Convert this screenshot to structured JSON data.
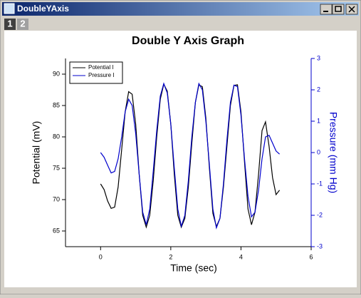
{
  "window": {
    "title": "DoubleYAxis",
    "tabs": [
      "1",
      "2"
    ]
  },
  "chart_data": {
    "type": "line",
    "title": "Double Y Axis Graph",
    "x_label": "Time (sec)",
    "y_label": "Potential (mV)",
    "y2_label": "Pressure (mm Hg)",
    "x": [
      0,
      0.1,
      0.2,
      0.3,
      0.4,
      0.5,
      0.6,
      0.7,
      0.8,
      0.9,
      1,
      1.1,
      1.2,
      1.3,
      1.4,
      1.5,
      1.6,
      1.7,
      1.8,
      1.9,
      2,
      2.1,
      2.2,
      2.3,
      2.4,
      2.5,
      2.6,
      2.7,
      2.8,
      2.9,
      3,
      3.1,
      3.2,
      3.3,
      3.4,
      3.5,
      3.6,
      3.7,
      3.8,
      3.9,
      4,
      4.1,
      4.2,
      4.3,
      4.4,
      4.5,
      4.6,
      4.7,
      4.8,
      4.9,
      5,
      5.1
    ],
    "series": [
      {
        "name": "Potential I",
        "color": "#000000",
        "values": [
          72.5,
          71.6,
          69.8,
          68.6,
          68.8,
          72,
          78,
          84,
          87.2,
          86.8,
          82,
          74,
          67.5,
          65.6,
          67.5,
          73,
          80,
          86,
          88.4,
          87.3,
          82,
          74,
          67.5,
          65.6,
          67,
          72,
          79,
          85.5,
          88.3,
          88,
          83,
          75,
          67.8,
          65.7,
          67,
          72,
          78.5,
          85,
          88.2,
          88.3,
          84,
          76,
          68.5,
          66,
          68,
          74,
          81,
          82.4,
          78.5,
          73.5,
          70.8,
          71.5
        ]
      },
      {
        "name": "Pressure I",
        "color": "#0000cc",
        "axis": "y2",
        "values": [
          0,
          -0.15,
          -0.4,
          -0.65,
          -0.6,
          -0.2,
          0.5,
          1.3,
          1.7,
          1.5,
          0.6,
          -0.7,
          -1.9,
          -2.3,
          -1.8,
          -0.6,
          0.7,
          1.8,
          2.2,
          1.9,
          0.9,
          -0.5,
          -1.8,
          -2.35,
          -2,
          -0.9,
          0.5,
          1.6,
          2.2,
          2,
          1,
          -0.4,
          -1.8,
          -2.4,
          -2.1,
          -1,
          0.4,
          1.6,
          2.15,
          2.1,
          1.2,
          -0.2,
          -1.4,
          -2.05,
          -1.9,
          -1.2,
          -0.2,
          0.5,
          0.55,
          0.3,
          0.05,
          -0.05
        ]
      }
    ],
    "xlim": [
      -1,
      6
    ],
    "xticks": [
      0,
      2,
      4,
      6
    ],
    "ylim": [
      62.5,
      92.5
    ],
    "yticks": [
      65,
      70,
      75,
      80,
      85,
      90
    ],
    "y2lim": [
      -3,
      3
    ],
    "y2ticks": [
      -3,
      -2,
      -1,
      0,
      1,
      2,
      3
    ],
    "y2_color": "#0000cc",
    "legend": "upper-left"
  }
}
